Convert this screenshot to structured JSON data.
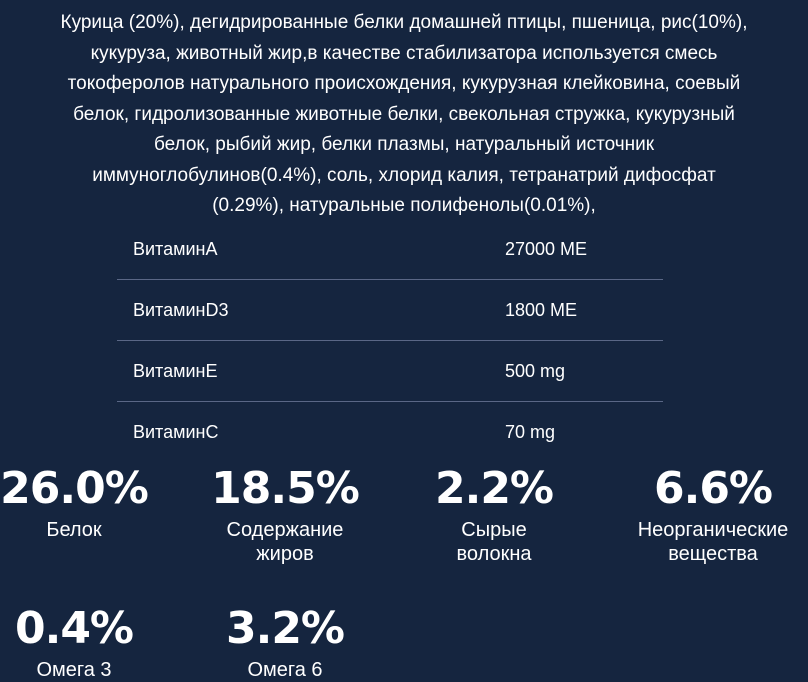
{
  "ingredients": {
    "line1": "Курица (20%), дегидрированные белки домашней птицы, пшеница, рис(10%),",
    "line2": "кукуруза, животный жир,в качестве стабилизатора используется смесь",
    "line3": "токоферолов натурального происхождения, кукурузная клейковина, соевый",
    "line4": "белок, гидролизованные животные белки, свекольная стружка, кукурузный",
    "line5": "белок, рыбий жир, белки плазмы, натуральный источник",
    "line6": "иммуноглобулинов(0.4%), соль, хлорид калия, тетранатрий дифосфат",
    "line7": "(0.29%), натуральные полифенолы(0.01%),"
  },
  "vitamins": [
    {
      "name": "ВитаминA",
      "value": "27000 МЕ"
    },
    {
      "name": "ВитаминD3",
      "value": "1800 МЕ"
    },
    {
      "name": "ВитаминE",
      "value": "500 mg"
    },
    {
      "name": "ВитаминC",
      "value": "70 mg"
    }
  ],
  "stats": [
    {
      "value": "26.0%",
      "label_line1": "Белок",
      "label_line2": ""
    },
    {
      "value": "18.5%",
      "label_line1": "Содержание",
      "label_line2": "жиров"
    },
    {
      "value": "2.2%",
      "label_line1": "Сырые",
      "label_line2": "волокна"
    },
    {
      "value": "6.6%",
      "label_line1": "Неорганические",
      "label_line2": "вещества"
    },
    {
      "value": "0.4%",
      "label_line1": "Омега 3",
      "label_line2": ""
    },
    {
      "value": "3.2%",
      "label_line1": "Омега 6",
      "label_line2": ""
    }
  ],
  "colors": {
    "background": "#15253f",
    "text": "#ffffff",
    "divider": "#5a6786"
  }
}
